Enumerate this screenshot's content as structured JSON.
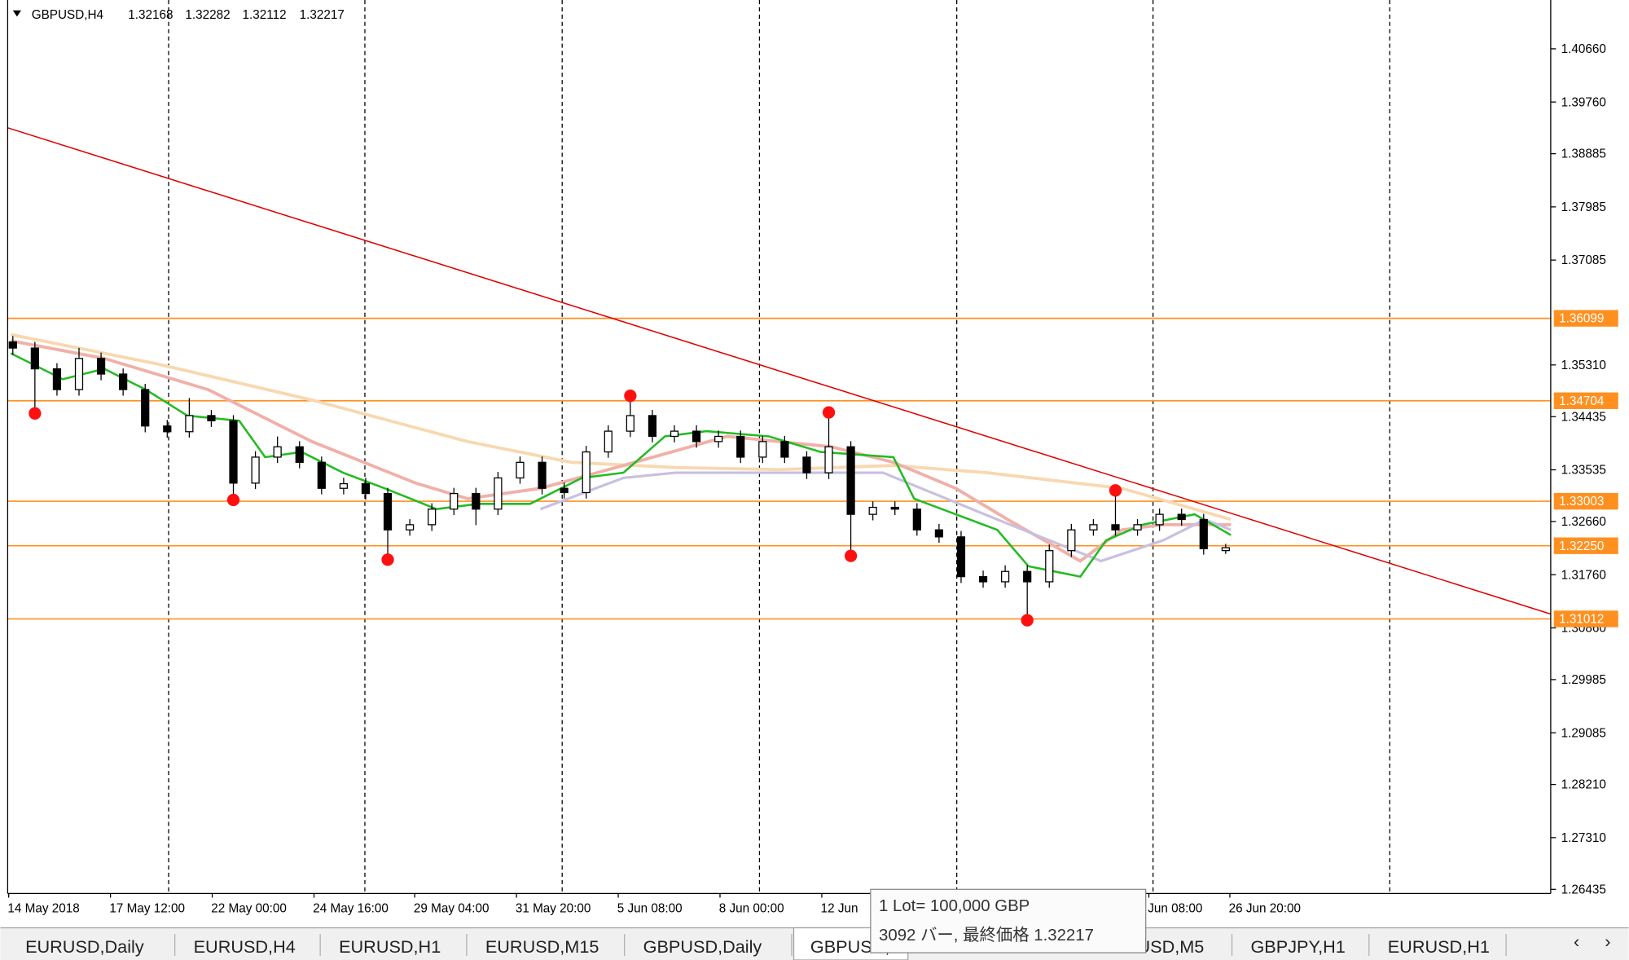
{
  "chart": {
    "symbol": "GBPUSD,H4",
    "candles": [
      [
        1.357,
        1.358,
        1.3548,
        1.35596
      ],
      [
        1.35596,
        1.357,
        1.34525,
        1.35244
      ],
      [
        1.35244,
        1.3534,
        1.3479,
        1.34893
      ],
      [
        1.34893,
        1.356,
        1.3479,
        1.3542
      ],
      [
        1.3542,
        1.3552,
        1.3505,
        1.35156
      ],
      [
        1.35156,
        1.3525,
        1.3479,
        1.34893
      ],
      [
        1.34893,
        1.3499,
        1.3417,
        1.34277
      ],
      [
        1.34277,
        1.3438,
        1.3408,
        1.3418
      ],
      [
        1.3418,
        1.3475,
        1.3408,
        1.34453
      ],
      [
        1.34453,
        1.3455,
        1.3426,
        1.34365
      ],
      [
        1.34365,
        1.3446,
        1.3306,
        1.3331
      ],
      [
        1.3331,
        1.3385,
        1.3321,
        1.3375
      ],
      [
        1.3375,
        1.341,
        1.3365,
        1.33925
      ],
      [
        1.33925,
        1.3402,
        1.3356,
        1.33662
      ],
      [
        1.33662,
        1.3376,
        1.3312,
        1.33222
      ],
      [
        1.33222,
        1.334,
        1.3312,
        1.333
      ],
      [
        1.333,
        1.334,
        1.3303,
        1.33134
      ],
      [
        1.33134,
        1.3323,
        1.3205,
        1.32519
      ],
      [
        1.32519,
        1.327,
        1.3242,
        1.32606
      ],
      [
        1.32606,
        1.3297,
        1.325,
        1.3287
      ],
      [
        1.3287,
        1.3323,
        1.3277,
        1.33134
      ],
      [
        1.33134,
        1.3323,
        1.326,
        1.3287
      ],
      [
        1.3287,
        1.335,
        1.3277,
        1.33398
      ],
      [
        1.33398,
        1.3376,
        1.333,
        1.33662
      ],
      [
        1.33662,
        1.3376,
        1.3312,
        1.33222
      ],
      [
        1.33222,
        1.3332,
        1.3305,
        1.3315
      ],
      [
        1.3315,
        1.3394,
        1.3305,
        1.33838
      ],
      [
        1.33838,
        1.3429,
        1.3374,
        1.34189
      ],
      [
        1.34189,
        1.34753,
        1.3409,
        1.34453
      ],
      [
        1.34453,
        1.3455,
        1.34,
        1.34101
      ],
      [
        1.34101,
        1.3429,
        1.34,
        1.34189
      ],
      [
        1.34189,
        1.3429,
        1.3391,
        1.34013
      ],
      [
        1.34013,
        1.342,
        1.3391,
        1.34101
      ],
      [
        1.34101,
        1.342,
        1.3365,
        1.3375
      ],
      [
        1.3375,
        1.3411,
        1.3365,
        1.34013
      ],
      [
        1.34013,
        1.3411,
        1.3365,
        1.3375
      ],
      [
        1.3375,
        1.3385,
        1.3338,
        1.33486
      ],
      [
        1.33486,
        1.34471,
        1.3338,
        1.33925
      ],
      [
        1.33925,
        1.3402,
        1.32114,
        1.32782
      ],
      [
        1.32782,
        1.33,
        1.3268,
        1.329
      ],
      [
        1.329,
        1.33,
        1.3277,
        1.3287
      ],
      [
        1.3287,
        1.3297,
        1.3242,
        1.32519
      ],
      [
        1.32519,
        1.3262,
        1.323,
        1.324
      ],
      [
        1.324,
        1.325,
        1.3162,
        1.31727
      ],
      [
        1.31727,
        1.3183,
        1.3154,
        1.3164
      ],
      [
        1.3164,
        1.3192,
        1.3154,
        1.31815
      ],
      [
        1.31815,
        1.3192,
        1.31024,
        1.3164
      ],
      [
        1.3164,
        1.3227,
        1.3154,
        1.32167
      ],
      [
        1.32167,
        1.3262,
        1.3206,
        1.32519
      ],
      [
        1.32519,
        1.327,
        1.3242,
        1.32606
      ],
      [
        1.32606,
        1.33151,
        1.3242,
        1.32519
      ],
      [
        1.32519,
        1.327,
        1.3242,
        1.32606
      ],
      [
        1.32606,
        1.3288,
        1.325,
        1.32782
      ],
      [
        1.32782,
        1.3288,
        1.3259,
        1.32694
      ],
      [
        1.32694,
        1.3279,
        1.321,
        1.322
      ],
      [
        1.32168,
        1.32282,
        1.32112,
        1.32217
      ]
    ],
    "price_ticks": [
      {
        "value": 1.4066,
        "label": "1.40660"
      },
      {
        "value": 1.3976,
        "label": "1.39760"
      },
      {
        "value": 1.38885,
        "label": "1.38885"
      },
      {
        "value": 1.37985,
        "label": "1.37985"
      },
      {
        "value": 1.37085,
        "label": "1.37085"
      },
      {
        "value": 1.3531,
        "label": "1.35310"
      },
      {
        "value": 1.34435,
        "label": "1.34435"
      },
      {
        "value": 1.33535,
        "label": "1.33535"
      },
      {
        "value": 1.3266,
        "label": "1.32660"
      },
      {
        "value": 1.3176,
        "label": "1.31760"
      },
      {
        "value": 1.3086,
        "label": "1.30860"
      },
      {
        "value": 1.29985,
        "label": "1.29985"
      },
      {
        "value": 1.29085,
        "label": "1.29085"
      },
      {
        "value": 1.2821,
        "label": "1.28210"
      },
      {
        "value": 1.2731,
        "label": "1.27310"
      },
      {
        "value": 1.26435,
        "label": "1.26435"
      }
    ],
    "levels": [
      1.36099,
      1.34704,
      1.33003,
      {
        "value": 1.3225,
        "label": "1.32250"
      },
      1.31012
    ],
    "time_labels": [
      "14 May 2018",
      "17 May 12:00",
      "22 May 00:00",
      "24 May 16:00",
      "29 May 04:00",
      "31 May 20:00",
      "5 Jun 08:00",
      "8 Jun 00:00",
      "12 Jun",
      "Jun 08:00",
      "26 Jun 20:00"
    ]
  },
  "tooltip": {
    "lot": "1 Lot= 100,000 GBP",
    "bars": "3092 バー, 最終価格"
  },
  "tabs": [
    "EURUSD,Daily",
    "EURUSD,H4",
    "EURUSD,H1",
    "EURUSD,M15",
    "GBPUSD,Daily",
    "GBPUSD,H4",
    "USD,M5",
    "GBPJPY,H1",
    "EURUSD,H1"
  ]
}
